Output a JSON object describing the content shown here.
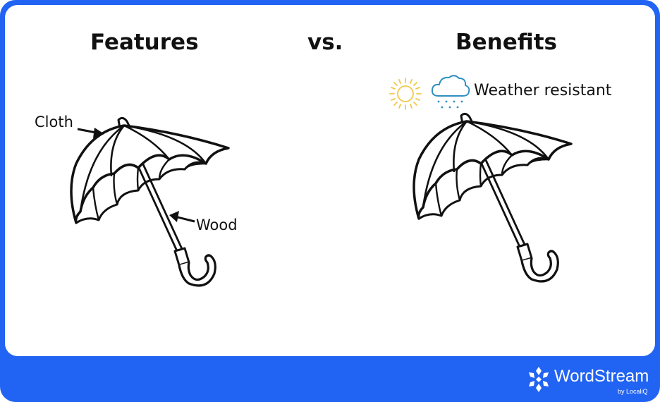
{
  "headings": {
    "features": "Features",
    "vs": "vs.",
    "benefits": "Benefits"
  },
  "features": {
    "labels": [
      "Cloth",
      "Wood"
    ],
    "illustration": "umbrella-icon"
  },
  "benefits": {
    "label": "Weather resistant",
    "icons": [
      "sun-icon",
      "rain-cloud-icon"
    ],
    "illustration": "umbrella-icon"
  },
  "brand": {
    "name": "WordStream",
    "tagline": "by LocaliQ",
    "logo_icon": "snowflake-logo-icon"
  },
  "colors": {
    "frame": "#2163f2",
    "sun": "#f2c84b",
    "rain": "#2f8fbf",
    "ink": "#111111"
  }
}
